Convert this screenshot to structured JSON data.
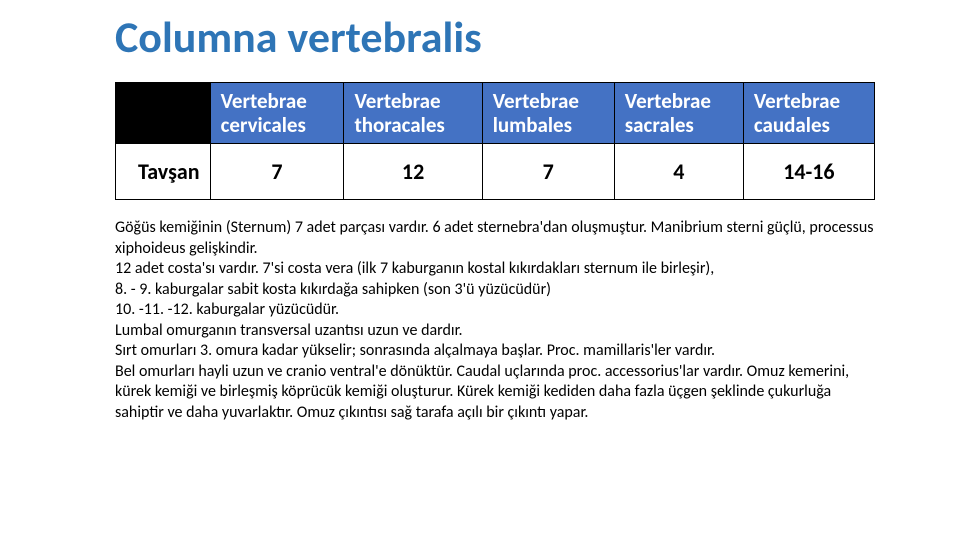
{
  "title": {
    "text": "Columna vertebralis",
    "color": "#2e75b6"
  },
  "table": {
    "header_bg": "#4472c4",
    "header_fg": "#ffffff",
    "corner_bg": "#000000",
    "headers": [
      "Vertebrae cervicales",
      "Vertebrae thoracales",
      "Vertebrae lumbales",
      "Vertebrae sacrales",
      "Vertebrae caudales"
    ],
    "row_label": "Tavşan",
    "values": [
      "7",
      "12",
      "7",
      "4",
      "14-16"
    ]
  },
  "paragraphs": [
    "Göğüs kemiğinin (Sternum) 7 adet parçası vardır. 6 adet sternebra'dan oluşmuştur. Manibrium sterni güçlü, processus xiphoideus gelişkindir.",
    "12 adet costa'sı vardır. 7'si costa vera (ilk 7 kaburganın kostal kıkırdakları sternum ile birleşir),",
    " 8. - 9. kaburgalar sabit kosta kıkırdağa sahipken (son 3'ü yüzücüdür)",
    "10. -11. -12. kaburgalar yüzücüdür.",
    "Lumbal omurganın transversal uzantısı uzun ve dardır.",
    "Sırt omurları 3. omura kadar yükselir; sonrasında alçalmaya başlar. Proc. mamillaris'ler vardır.",
    "Bel omurları hayli uzun ve cranio ventral'e dönüktür. Caudal uçlarında proc. accessorius'lar vardır. Omuz kemerini, kürek kemiği ve birleşmiş köprücük kemiği oluşturur. Kürek kemiği kediden daha fazla üçgen şeklinde çukurluğa sahiptir ve daha yuvarlaktır. Omuz çıkıntısı sağ tarafa açılı bir çıkıntı yapar."
  ]
}
